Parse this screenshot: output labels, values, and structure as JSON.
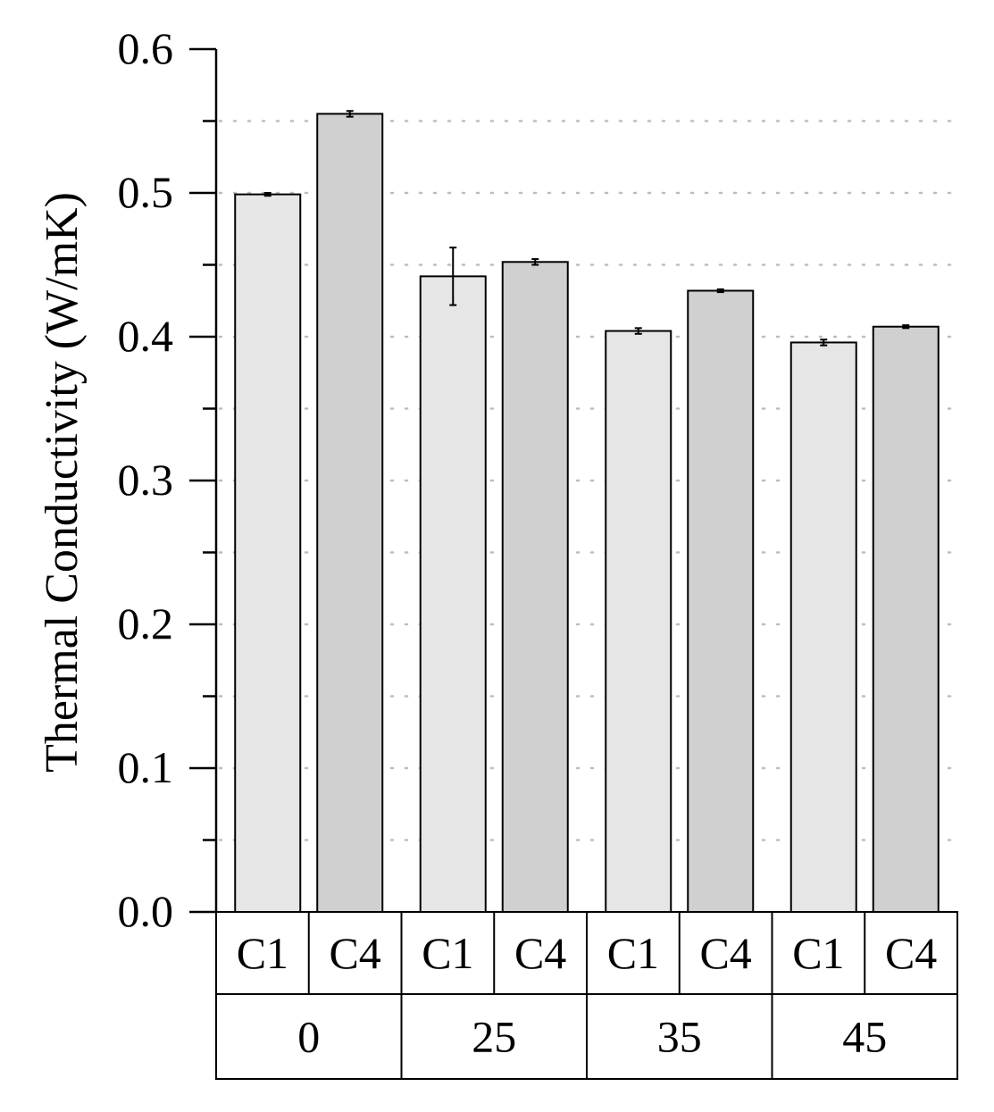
{
  "chart_data": {
    "type": "bar",
    "title": "",
    "xlabel": "",
    "ylabel": "Thermal Conductivity (W/mK)",
    "ylim": [
      0.0,
      0.6
    ],
    "yticks": [
      "0.0",
      "0.1",
      "0.2",
      "0.3",
      "0.4",
      "0.5",
      "0.6"
    ],
    "ytick_values": [
      0.0,
      0.1,
      0.2,
      0.3,
      0.4,
      0.5,
      0.6
    ],
    "grid": "horizontal dotted",
    "groups": [
      "0",
      "25",
      "35",
      "45"
    ],
    "subcategories": [
      "C1",
      "C4"
    ],
    "series": [
      {
        "values": [
          0.499,
          0.442,
          0.404,
          0.396
        ],
        "errors": [
          0.001,
          0.02,
          0.002,
          0.002
        ],
        "color": "#e6e6e6"
      },
      {
        "values": [
          0.555,
          0.452,
          0.432,
          0.407
        ],
        "errors": [
          0.002,
          0.002,
          0.001,
          0.001
        ],
        "color": "#d0d0d0"
      }
    ]
  }
}
